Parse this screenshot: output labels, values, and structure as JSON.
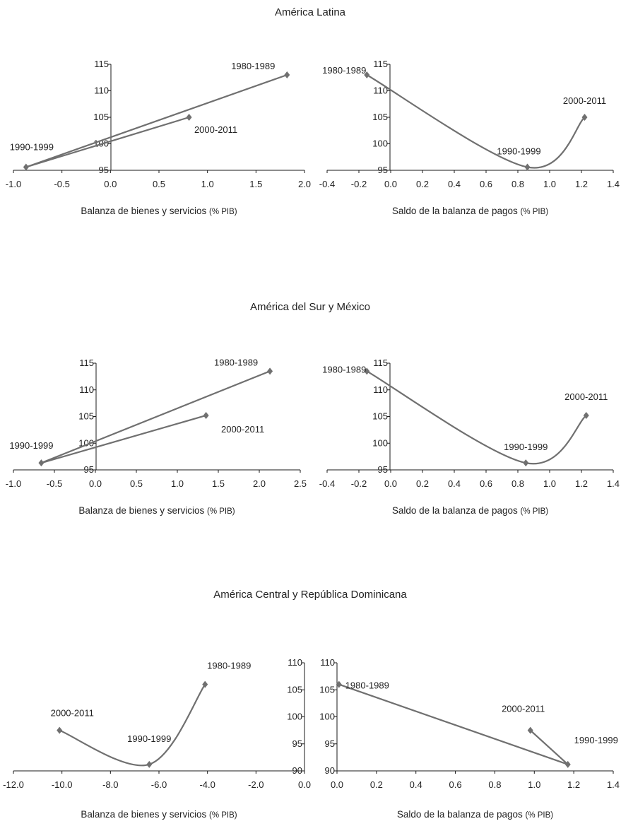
{
  "chart_data": [
    {
      "type": "line",
      "title": "América Latina",
      "subcharts": [
        {
          "xlabel": "Balanza de bienes y servicios",
          "xlabel_unit": "(% PIB)",
          "xlim": [
            -1.0,
            2.0
          ],
          "xticks": [
            "-1.0",
            "-0.5",
            "0.0",
            "0.5",
            "1.0",
            "1.5",
            "2.0"
          ],
          "ylim": [
            95,
            115
          ],
          "yticks": [
            "95",
            "100",
            "105",
            "110",
            "115"
          ],
          "smooth": false,
          "points": [
            {
              "label": "1980-1989",
              "x": 1.82,
              "y": 113.0
            },
            {
              "label": "1990-1999",
              "x": -0.87,
              "y": 95.6
            },
            {
              "label": "2000-2011",
              "x": 0.81,
              "y": 105.0
            }
          ]
        },
        {
          "xlabel": "Saldo de la balanza de pagos",
          "xlabel_unit": "(% PIB)",
          "xlim": [
            -0.4,
            1.4
          ],
          "xticks": [
            "-0.4",
            "-0.2",
            "0.0",
            "0.2",
            "0.4",
            "0.6",
            "0.8",
            "1.0",
            "1.2",
            "1.4"
          ],
          "ylim": [
            95,
            115
          ],
          "yticks": [
            "95",
            "100",
            "105",
            "110",
            "115"
          ],
          "smooth": true,
          "points": [
            {
              "label": "1980-1989",
              "x": -0.15,
              "y": 113.0
            },
            {
              "label": "1990-1999",
              "x": 0.86,
              "y": 95.6
            },
            {
              "label": "2000-2011",
              "x": 1.22,
              "y": 105.0
            }
          ]
        }
      ]
    },
    {
      "type": "line",
      "title": "América del Sur y México",
      "subcharts": [
        {
          "xlabel": "Balanza de bienes y servicios",
          "xlabel_unit": "(% PIB)",
          "xlim": [
            -1.0,
            2.5
          ],
          "xticks": [
            "-1.0",
            "-0.5",
            "0.0",
            "0.5",
            "1.0",
            "1.5",
            "2.0",
            "2.5"
          ],
          "ylim": [
            95,
            115
          ],
          "yticks": [
            "95",
            "100",
            "105",
            "110",
            "115"
          ],
          "smooth": false,
          "points": [
            {
              "label": "1980-1989",
              "x": 2.13,
              "y": 113.5
            },
            {
              "label": "1990-1999",
              "x": -0.66,
              "y": 96.3
            },
            {
              "label": "2000-2011",
              "x": 1.35,
              "y": 105.2
            }
          ]
        },
        {
          "xlabel": "Saldo de la balanza de pagos",
          "xlabel_unit": "(% PIB)",
          "xlim": [
            -0.4,
            1.4
          ],
          "xticks": [
            "-0.4",
            "-0.2",
            "0.0",
            "0.2",
            "0.4",
            "0.6",
            "0.8",
            "1.0",
            "1.2",
            "1.4"
          ],
          "ylim": [
            95,
            115
          ],
          "yticks": [
            "95",
            "100",
            "105",
            "110",
            "115"
          ],
          "smooth": true,
          "points": [
            {
              "label": "1980-1989",
              "x": -0.15,
              "y": 113.5
            },
            {
              "label": "1990-1999",
              "x": 0.85,
              "y": 96.3
            },
            {
              "label": "2000-2011",
              "x": 1.23,
              "y": 105.2
            }
          ]
        }
      ]
    },
    {
      "type": "line",
      "title": "América Central y República Dominicana",
      "subcharts": [
        {
          "xlabel": "Balanza de bienes y servicios",
          "xlabel_unit": "(% PIB)",
          "xlim": [
            -12.0,
            0.0
          ],
          "xticks": [
            "-12.0",
            "-10.0",
            "-8.0",
            "-6.0",
            "-4.0",
            "-2.0",
            "0.0"
          ],
          "ylim": [
            90,
            110
          ],
          "yticks": [
            "90",
            "95",
            "100",
            "105",
            "110"
          ],
          "smooth": true,
          "points": [
            {
              "label": "2000-2011",
              "x": -10.1,
              "y": 97.5
            },
            {
              "label": "1990-1999",
              "x": -6.4,
              "y": 91.2
            },
            {
              "label": "1980-1989",
              "x": -4.1,
              "y": 106.0
            }
          ]
        },
        {
          "xlabel": "Saldo de la balanza de pagos",
          "xlabel_unit": "(% PIB)",
          "xlim": [
            0.0,
            1.4
          ],
          "xticks": [
            "0.0",
            "0.2",
            "0.4",
            "0.6",
            "0.8",
            "1.0",
            "1.2",
            "1.4"
          ],
          "ylim": [
            90,
            110
          ],
          "yticks": [
            "90",
            "95",
            "100",
            "105",
            "110"
          ],
          "smooth": false,
          "points": [
            {
              "label": "1980-1989",
              "x": 0.01,
              "y": 106.0
            },
            {
              "label": "1990-1999",
              "x": 1.17,
              "y": 91.2
            },
            {
              "label": "2000-2011",
              "x": 0.98,
              "y": 97.5
            }
          ]
        }
      ]
    }
  ],
  "colors": {
    "series": "#707070",
    "axis": "#1a1a1a",
    "text": "#222222"
  }
}
